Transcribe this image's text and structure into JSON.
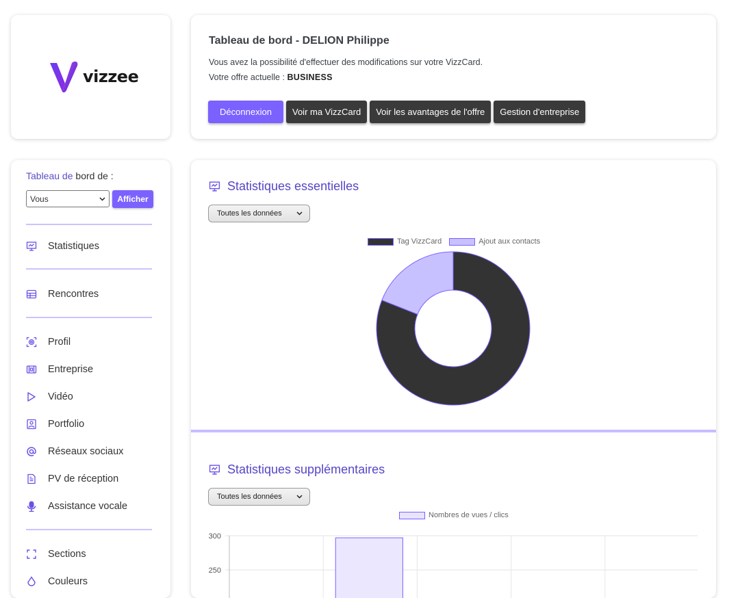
{
  "logo": {
    "text": "vizzee"
  },
  "header": {
    "title": "Tableau de bord - DELION Philippe",
    "line1": "Vous avez la possibilité d'effectuer des modifications sur votre VizzCard.",
    "line2_prefix": "Votre offre actuelle :",
    "offer": "BUSINESS",
    "buttons": {
      "logout": "Déconnexion",
      "view_card": "Voir ma VizzCard",
      "advantages": "Voir les avantages de l'offre",
      "company": "Gestion d'entreprise"
    }
  },
  "sidebar": {
    "label_part1": "Tableau de",
    "label_part2": "bord de :",
    "select_value": "Vous",
    "afficher": "Afficher",
    "items": [
      {
        "label": "Statistiques",
        "icon": "presentation-chart-icon"
      },
      {
        "label": "Rencontres",
        "icon": "table-icon"
      },
      {
        "label": "Profil",
        "icon": "profile-icon"
      },
      {
        "label": "Entreprise",
        "icon": "building-icon"
      },
      {
        "label": "Vidéo",
        "icon": "play-icon"
      },
      {
        "label": "Portfolio",
        "icon": "image-icon"
      },
      {
        "label": "Réseaux sociaux",
        "icon": "at-icon"
      },
      {
        "label": "PV de réception",
        "icon": "document-icon"
      },
      {
        "label": "Assistance vocale",
        "icon": "microphone-icon"
      },
      {
        "label": "Sections",
        "icon": "sections-icon"
      },
      {
        "label": "Couleurs",
        "icon": "drop-icon"
      }
    ]
  },
  "main": {
    "section1_title": "Statistiques essentielles",
    "section1_select": "Toutes les données",
    "section2_title": "Statistiques supplémentaires",
    "section2_select": "Toutes les données"
  },
  "colors": {
    "accent": "#7b61ff",
    "dark": "#3a3a3a",
    "light_purple": "#c6bdff"
  },
  "chart_data": [
    {
      "type": "pie",
      "labels": [
        "Tag VizzCard",
        "Ajout aux contacts"
      ],
      "values": [
        81,
        19
      ],
      "colors": [
        "#333333",
        "#c8c1ff"
      ],
      "legend": "top"
    },
    {
      "type": "bar",
      "legend": "top",
      "series": [
        {
          "name": "Nombres de vues / clics",
          "values": [
            null,
            297,
            null,
            null,
            null
          ]
        }
      ],
      "categories": [
        "",
        "",
        "",
        "",
        ""
      ],
      "y_ticks": [
        "300",
        "250"
      ],
      "ylim": [
        0,
        300
      ],
      "grid": true
    }
  ]
}
